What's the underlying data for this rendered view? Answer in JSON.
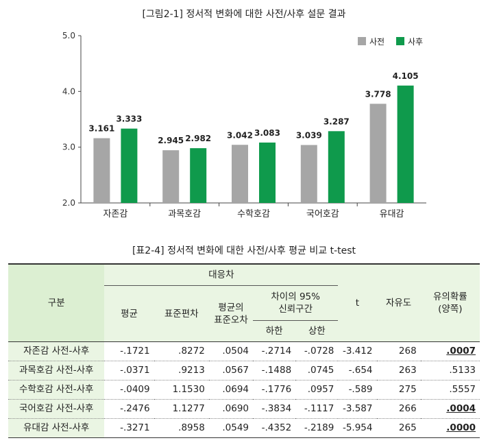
{
  "figure_title": "[그림2-1] 정서적 변화에 대한 사전/사후 설문 결과",
  "chart_data": {
    "type": "bar",
    "title": "[그림2-1] 정서적 변화에 대한 사전/사후 설문 결과",
    "categories": [
      "자존감",
      "과목호감",
      "수학호감",
      "국어호감",
      "유대감"
    ],
    "series": [
      {
        "name": "사전",
        "color": "#a6a6a6",
        "values": [
          3.161,
          2.945,
          3.042,
          3.039,
          3.778
        ],
        "labels": [
          "3.161",
          "2.945",
          "3.042",
          "3.039",
          "3.778"
        ]
      },
      {
        "name": "사후",
        "color": "#0f9a4c",
        "values": [
          3.333,
          2.982,
          3.083,
          3.287,
          4.105
        ],
        "labels": [
          "3.333",
          "2.982",
          "3.083",
          "3.287",
          "4.105"
        ]
      }
    ],
    "ylim": [
      2.0,
      5.0
    ],
    "yticks": [
      "2.0",
      "3.0",
      "4.0",
      "5.0"
    ],
    "xlabel": "",
    "ylabel": "",
    "legend": "top-right",
    "grid": false
  },
  "table": {
    "title": "[표2-4] 정서적 변화에 대한 사전/사후 평균 비교 t-test",
    "headers": {
      "gubun": "구분",
      "paired_diff": "대응차",
      "mean": "평균",
      "sd": "표준편차",
      "se_1": "평균의",
      "se_2": "표준오차",
      "ci_1": "차이의 95%",
      "ci_2": "신뢰구간",
      "lower": "하한",
      "upper": "상한",
      "t": "t",
      "df": "자유도",
      "sig_1": "유의확률",
      "sig_2": "(양쪽)"
    },
    "rows": [
      {
        "label": "자존감 사전-사후",
        "mean": "-.1721",
        "sd": ".8272",
        "se": ".0504",
        "lower": "-.2714",
        "upper": "-.0728",
        "t": "-3.412",
        "df": "268",
        "p": ".0007"
      },
      {
        "label": "과목호감 사전-사후",
        "mean": "-.0371",
        "sd": ".9213",
        "se": ".0567",
        "lower": "-.1488",
        "upper": ".0745",
        "t": "-.654",
        "df": "263",
        "p": ".5133"
      },
      {
        "label": "수학호감 사전-사후",
        "mean": "-.0409",
        "sd": "1.1530",
        "se": ".0694",
        "lower": "-.1776",
        "upper": ".0957",
        "t": "-.589",
        "df": "275",
        "p": ".5557"
      },
      {
        "label": "국어호감 사전-사후",
        "mean": "-.2476",
        "sd": "1.1277",
        "se": ".0690",
        "lower": "-.3834",
        "upper": "-.1117",
        "t": "-3.587",
        "df": "266",
        "p": ".0004"
      },
      {
        "label": "유대감 사전-사후",
        "mean": "-.3271",
        "sd": ".8958",
        "se": ".0549",
        "lower": "-.4352",
        "upper": "-.2189",
        "t": "-5.954",
        "df": "265",
        "p": ".0000"
      }
    ]
  }
}
